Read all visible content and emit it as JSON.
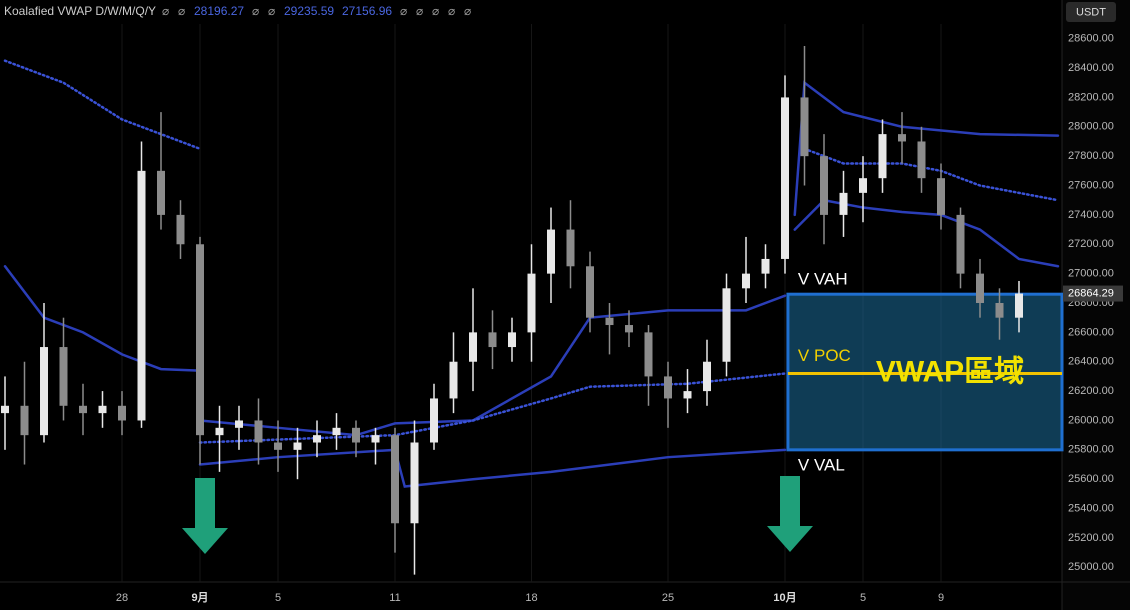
{
  "chart_data": {
    "type": "candlestick",
    "indicator_title": "Koalafied VWAP D/W/M/Q/Y",
    "indicator_values": [
      "⌀",
      "⌀",
      28196.27,
      "⌀",
      "⌀",
      29235.59,
      27156.96,
      "⌀",
      "⌀",
      "⌀",
      "⌀",
      "⌀"
    ],
    "currency": "USDT",
    "xlim": [
      0,
      54
    ],
    "grid": "x",
    "xticks": [
      {
        "value": 6,
        "label": "28"
      },
      {
        "value": 10,
        "label": "9月"
      },
      {
        "value": 14,
        "label": "5"
      },
      {
        "value": 20,
        "label": "11"
      },
      {
        "value": 27,
        "label": "18"
      },
      {
        "value": 34,
        "label": "25"
      },
      {
        "value": 40,
        "label": "10月"
      },
      {
        "value": 44,
        "label": "5"
      },
      {
        "value": 48,
        "label": "9"
      }
    ],
    "ylim": [
      24900,
      28700
    ],
    "yticks": [
      {
        "value": 25000,
        "label": "25000.00"
      },
      {
        "value": 25200,
        "label": "25200.00"
      },
      {
        "value": 25400,
        "label": "25400.00"
      },
      {
        "value": 25600,
        "label": "25600.00"
      },
      {
        "value": 25800,
        "label": "25800.00"
      },
      {
        "value": 26000,
        "label": "26000.00"
      },
      {
        "value": 26200,
        "label": "26200.00"
      },
      {
        "value": 26400,
        "label": "26400.00"
      },
      {
        "value": 26600,
        "label": "26600.00"
      },
      {
        "value": 26800,
        "label": "26800.00"
      },
      {
        "value": 27000,
        "label": "27000.00"
      },
      {
        "value": 27200,
        "label": "27200.00"
      },
      {
        "value": 27400,
        "label": "27400.00"
      },
      {
        "value": 27600,
        "label": "27600.00"
      },
      {
        "value": 27800,
        "label": "27800.00"
      },
      {
        "value": 28000,
        "label": "28000.00"
      },
      {
        "value": 28200,
        "label": "28200.00"
      },
      {
        "value": 28400,
        "label": "28400.00"
      },
      {
        "value": 28600,
        "label": "28600.00"
      }
    ],
    "up_color": "#e8e8e8",
    "down_color": "#8c8c8c",
    "x": [
      0,
      1,
      2,
      3,
      4,
      5,
      6,
      7,
      8,
      9,
      10,
      11,
      12,
      13,
      14,
      15,
      16,
      17,
      18,
      19,
      20,
      21,
      22,
      23,
      24,
      25,
      26,
      27,
      28,
      29,
      30,
      31,
      32,
      33,
      34,
      35,
      36,
      37,
      38,
      39,
      40,
      41,
      42,
      43,
      44,
      45,
      46,
      47,
      48,
      49,
      50,
      51,
      52
    ],
    "open": [
      26050,
      26100,
      25900,
      26500,
      26100,
      26050,
      26100,
      26000,
      27700,
      27400,
      27200,
      25900,
      25950,
      26000,
      25850,
      25800,
      25850,
      25900,
      25950,
      25850,
      25900,
      25300,
      25850,
      26150,
      26400,
      26600,
      26500,
      26600,
      27000,
      27300,
      27050,
      26700,
      26650,
      26600,
      26300,
      26150,
      26200,
      26400,
      26900,
      27000,
      27100,
      28200,
      27800,
      27400,
      27550,
      27650,
      27950,
      27900,
      27650,
      27400,
      27000,
      26800,
      26700
    ],
    "high": [
      26300,
      26400,
      26800,
      26700,
      26250,
      26200,
      26200,
      27900,
      28100,
      27500,
      27250,
      26100,
      26100,
      26150,
      26000,
      25950,
      26000,
      26050,
      26000,
      25950,
      25950,
      26000,
      26250,
      26600,
      26900,
      26750,
      26700,
      27200,
      27450,
      27500,
      27150,
      26800,
      26750,
      26650,
      26400,
      26350,
      26550,
      27000,
      27250,
      27200,
      28350,
      28550,
      27950,
      27700,
      27800,
      28050,
      28100,
      28000,
      27750,
      27450,
      27100,
      26900,
      26950
    ],
    "low": [
      25800,
      25700,
      25850,
      26000,
      25900,
      25950,
      25900,
      25950,
      27300,
      27100,
      25700,
      25650,
      25800,
      25700,
      25650,
      25600,
      25750,
      25800,
      25750,
      25700,
      25100,
      24950,
      25800,
      26050,
      26200,
      26350,
      26400,
      26400,
      26800,
      26900,
      26600,
      26450,
      26500,
      26100,
      25950,
      26050,
      26100,
      26300,
      26800,
      26900,
      27000,
      27600,
      27200,
      27250,
      27350,
      27550,
      27750,
      27550,
      27300,
      26900,
      26700,
      26550,
      26600
    ],
    "close": [
      26100,
      25900,
      26500,
      26100,
      26050,
      26100,
      26000,
      27700,
      27400,
      27200,
      25900,
      25950,
      26000,
      25850,
      25800,
      25850,
      25900,
      25950,
      25850,
      25900,
      25300,
      25850,
      26150,
      26400,
      26600,
      26500,
      26600,
      27000,
      27300,
      27050,
      26700,
      26650,
      26600,
      26300,
      26150,
      26200,
      26400,
      26900,
      27000,
      27100,
      28200,
      27800,
      27400,
      27550,
      27650,
      27950,
      27900,
      27650,
      27400,
      27000,
      26800,
      26700,
      26864.29
    ],
    "lines": [
      {
        "color": "#2b3eb8",
        "style": "solid",
        "x": [
          0,
          2,
          4,
          6,
          8,
          9.8
        ],
        "values": [
          27050,
          26700,
          26600,
          26450,
          26350,
          26340
        ]
      },
      {
        "color": "#3a52d6",
        "style": "dotted",
        "x": [
          0,
          3,
          6,
          9,
          10
        ],
        "values": [
          28450,
          28300,
          28050,
          27900,
          27850
        ]
      },
      {
        "color": "#2b3eb8",
        "style": "solid",
        "x": [
          10,
          14,
          18,
          20,
          24,
          28,
          30,
          34,
          38,
          40
        ],
        "values": [
          26000,
          25950,
          25900,
          25980,
          26000,
          26300,
          26700,
          26750,
          26750,
          26850
        ]
      },
      {
        "color": "#2b3eb8",
        "style": "solid",
        "x": [
          10,
          14,
          20,
          20.5,
          24,
          28,
          34,
          40
        ],
        "values": [
          25700,
          25750,
          25800,
          25550,
          25600,
          25650,
          25750,
          25800
        ]
      },
      {
        "color": "#3a52d6",
        "style": "dotted",
        "x": [
          10,
          20,
          24,
          28,
          30,
          35,
          40
        ],
        "values": [
          25850,
          25900,
          26000,
          26150,
          26230,
          26250,
          26320
        ]
      },
      {
        "color": "#2b3eb8",
        "style": "solid",
        "x": [
          40.5,
          41,
          43,
          46,
          50,
          54
        ],
        "values": [
          27400,
          28300,
          28100,
          28000,
          27950,
          27940
        ]
      },
      {
        "color": "#2b3eb8",
        "style": "solid",
        "x": [
          40.5,
          42,
          44,
          46,
          48,
          50,
          52,
          54
        ],
        "values": [
          27300,
          27500,
          27450,
          27420,
          27400,
          27300,
          27100,
          27050
        ]
      },
      {
        "color": "#3a52d6",
        "style": "dotted",
        "x": [
          41,
          43,
          46,
          48,
          50,
          54
        ],
        "values": [
          27850,
          27750,
          27750,
          27700,
          27600,
          27500
        ]
      }
    ],
    "zone": {
      "x_start": 40.15,
      "vah": 26860,
      "poc": 26320,
      "val": 25800,
      "label": "VWAP區域",
      "vah_label": "V VAH",
      "poc_label": "V POC",
      "val_label": "V VAL",
      "fill": "#1c6e9a",
      "border": "#1f6fd0",
      "poc_color": "#f2c200"
    }
  }
}
